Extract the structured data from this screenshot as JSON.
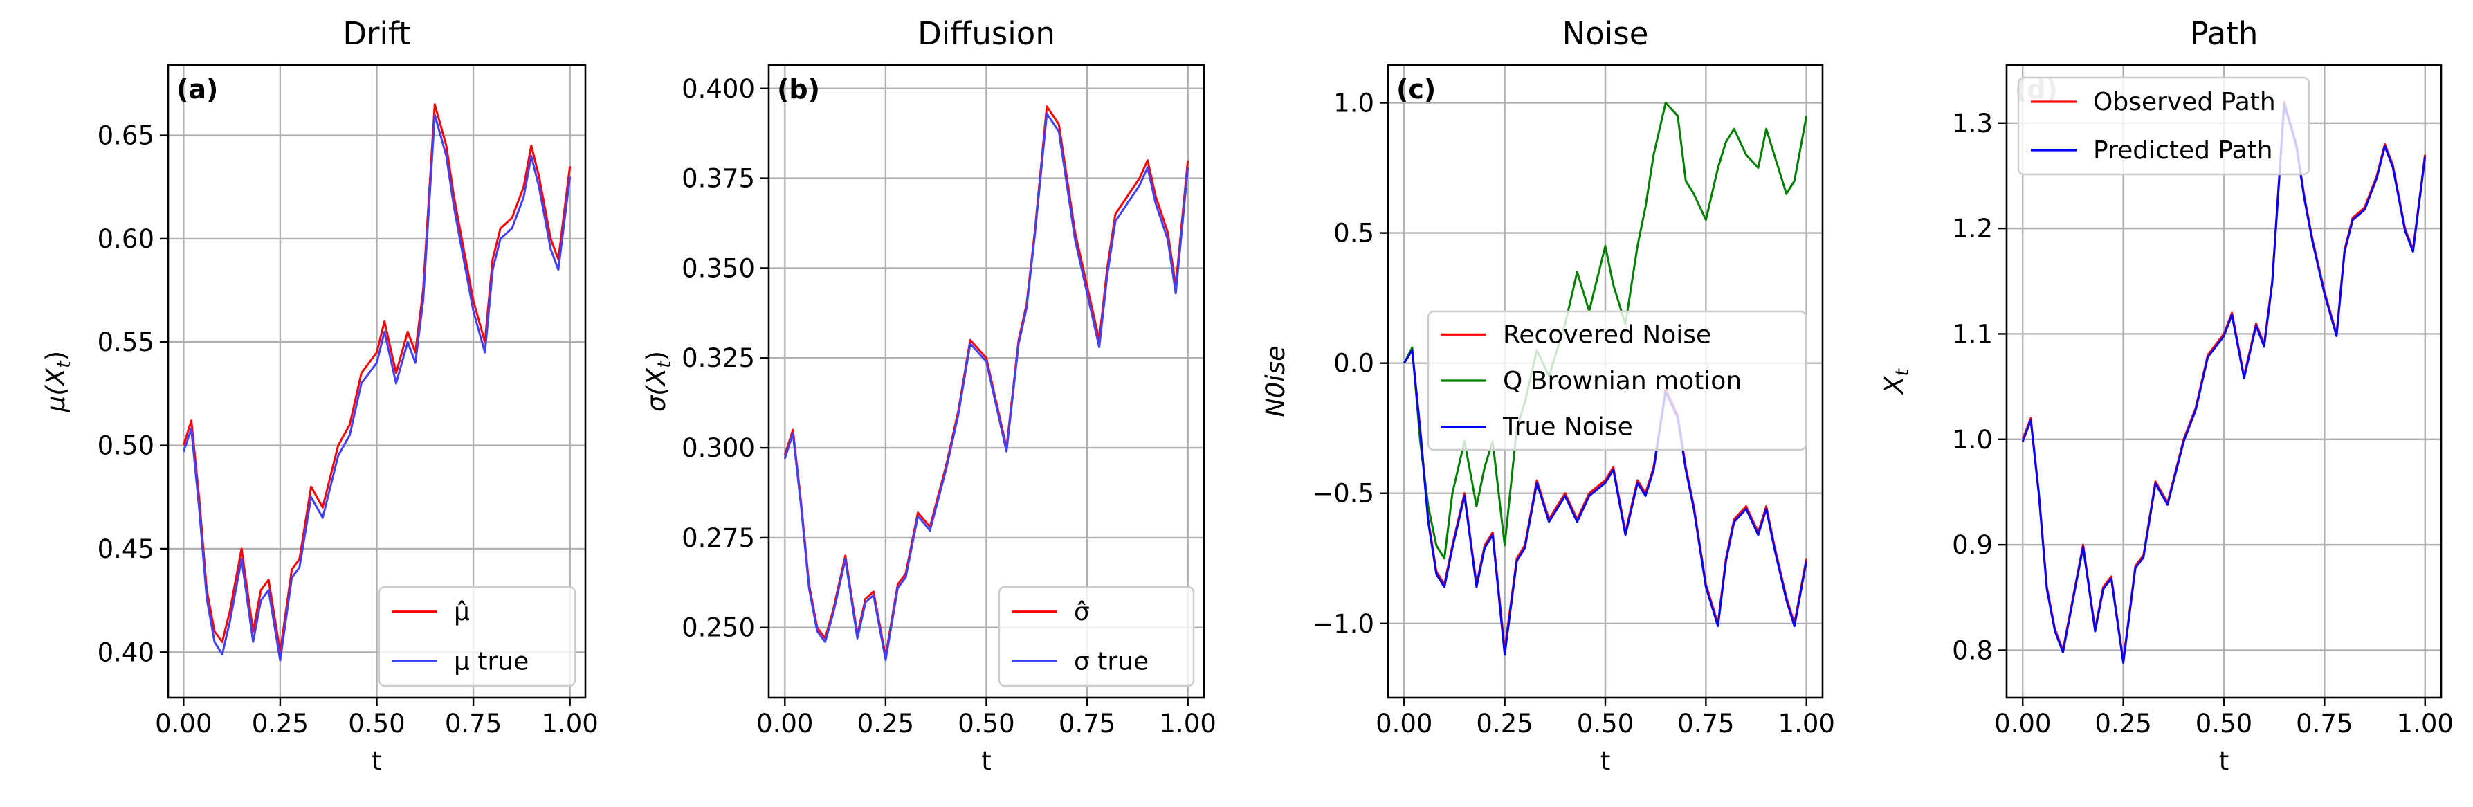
{
  "chart_data": [
    {
      "type": "line",
      "title": "Drift",
      "panel_label": "(a)",
      "xlabel": "t",
      "ylabel": "μ(X_t)",
      "ylabel_display": {
        "main": "μ(X",
        "sub": "t",
        "end": ")"
      },
      "xlim": [
        -0.04,
        1.04
      ],
      "ylim": [
        0.378,
        0.684
      ],
      "xticks": [
        0.0,
        0.25,
        0.5,
        0.75,
        1.0
      ],
      "xtick_labels": [
        "0.00",
        "0.25",
        "0.50",
        "0.75",
        "1.00"
      ],
      "yticks": [
        0.4,
        0.45,
        0.5,
        0.55,
        0.6,
        0.65
      ],
      "ytick_labels": [
        "0.40",
        "0.45",
        "0.50",
        "0.55",
        "0.60",
        "0.65"
      ],
      "grid": true,
      "legend_position": "bottom-right",
      "series": [
        {
          "name": "μ̂",
          "color": "#ff0000",
          "x": [
            0.0,
            0.02,
            0.04,
            0.06,
            0.08,
            0.1,
            0.12,
            0.15,
            0.18,
            0.2,
            0.22,
            0.25,
            0.28,
            0.3,
            0.33,
            0.36,
            0.4,
            0.43,
            0.46,
            0.5,
            0.52,
            0.55,
            0.58,
            0.6,
            0.62,
            0.65,
            0.68,
            0.7,
            0.72,
            0.75,
            0.78,
            0.8,
            0.82,
            0.85,
            0.88,
            0.9,
            0.92,
            0.95,
            0.97,
            1.0
          ],
          "values": [
            0.5,
            0.512,
            0.475,
            0.43,
            0.41,
            0.405,
            0.42,
            0.45,
            0.41,
            0.43,
            0.435,
            0.4,
            0.44,
            0.445,
            0.48,
            0.47,
            0.5,
            0.51,
            0.535,
            0.545,
            0.56,
            0.535,
            0.555,
            0.545,
            0.575,
            0.665,
            0.645,
            0.62,
            0.6,
            0.57,
            0.55,
            0.59,
            0.605,
            0.61,
            0.625,
            0.645,
            0.63,
            0.6,
            0.59,
            0.635
          ]
        },
        {
          "name": "μ true",
          "color": "#4040ff",
          "x": [
            0.0,
            0.02,
            0.04,
            0.06,
            0.08,
            0.1,
            0.12,
            0.15,
            0.18,
            0.2,
            0.22,
            0.25,
            0.28,
            0.3,
            0.33,
            0.36,
            0.4,
            0.43,
            0.46,
            0.5,
            0.52,
            0.55,
            0.58,
            0.6,
            0.62,
            0.65,
            0.68,
            0.7,
            0.72,
            0.75,
            0.78,
            0.8,
            0.82,
            0.85,
            0.88,
            0.9,
            0.92,
            0.95,
            0.97,
            1.0
          ],
          "values": [
            0.497,
            0.508,
            0.47,
            0.426,
            0.405,
            0.399,
            0.415,
            0.445,
            0.405,
            0.425,
            0.43,
            0.396,
            0.436,
            0.441,
            0.475,
            0.465,
            0.495,
            0.505,
            0.53,
            0.54,
            0.555,
            0.53,
            0.55,
            0.54,
            0.57,
            0.66,
            0.64,
            0.615,
            0.595,
            0.565,
            0.545,
            0.585,
            0.6,
            0.605,
            0.62,
            0.64,
            0.625,
            0.595,
            0.585,
            0.63
          ]
        }
      ]
    },
    {
      "type": "line",
      "title": "Diffusion",
      "panel_label": "(b)",
      "xlabel": "t",
      "ylabel": "σ(X_t)",
      "ylabel_display": {
        "main": "σ(X",
        "sub": "t",
        "end": ")"
      },
      "xlim": [
        -0.04,
        1.04
      ],
      "ylim": [
        0.2305,
        0.4065
      ],
      "xticks": [
        0.0,
        0.25,
        0.5,
        0.75,
        1.0
      ],
      "xtick_labels": [
        "0.00",
        "0.25",
        "0.50",
        "0.75",
        "1.00"
      ],
      "yticks": [
        0.25,
        0.275,
        0.3,
        0.325,
        0.35,
        0.375,
        0.4
      ],
      "ytick_labels": [
        "0.250",
        "0.275",
        "0.300",
        "0.325",
        "0.350",
        "0.375",
        "0.400"
      ],
      "grid": true,
      "legend_position": "bottom-right",
      "series": [
        {
          "name": "σ̂",
          "color": "#ff0000",
          "x": [
            0.0,
            0.02,
            0.04,
            0.06,
            0.08,
            0.1,
            0.12,
            0.15,
            0.18,
            0.2,
            0.22,
            0.25,
            0.28,
            0.3,
            0.33,
            0.36,
            0.4,
            0.43,
            0.46,
            0.5,
            0.52,
            0.55,
            0.58,
            0.6,
            0.62,
            0.65,
            0.68,
            0.7,
            0.72,
            0.75,
            0.78,
            0.8,
            0.82,
            0.85,
            0.88,
            0.9,
            0.92,
            0.95,
            0.97,
            1.0
          ],
          "values": [
            0.298,
            0.305,
            0.285,
            0.262,
            0.25,
            0.247,
            0.255,
            0.27,
            0.248,
            0.258,
            0.26,
            0.242,
            0.262,
            0.265,
            0.282,
            0.278,
            0.295,
            0.31,
            0.33,
            0.325,
            0.315,
            0.3,
            0.33,
            0.34,
            0.36,
            0.395,
            0.39,
            0.375,
            0.36,
            0.345,
            0.33,
            0.35,
            0.365,
            0.37,
            0.375,
            0.38,
            0.37,
            0.36,
            0.345,
            0.38
          ]
        },
        {
          "name": "σ true",
          "color": "#4040ff",
          "x": [
            0.0,
            0.02,
            0.04,
            0.06,
            0.08,
            0.1,
            0.12,
            0.15,
            0.18,
            0.2,
            0.22,
            0.25,
            0.28,
            0.3,
            0.33,
            0.36,
            0.4,
            0.43,
            0.46,
            0.5,
            0.52,
            0.55,
            0.58,
            0.6,
            0.62,
            0.65,
            0.68,
            0.7,
            0.72,
            0.75,
            0.78,
            0.8,
            0.82,
            0.85,
            0.88,
            0.9,
            0.92,
            0.95,
            0.97,
            1.0
          ],
          "values": [
            0.297,
            0.304,
            0.284,
            0.261,
            0.249,
            0.246,
            0.254,
            0.269,
            0.247,
            0.257,
            0.259,
            0.241,
            0.261,
            0.264,
            0.281,
            0.277,
            0.294,
            0.309,
            0.329,
            0.324,
            0.314,
            0.299,
            0.329,
            0.339,
            0.359,
            0.393,
            0.388,
            0.373,
            0.358,
            0.343,
            0.328,
            0.348,
            0.363,
            0.368,
            0.373,
            0.378,
            0.368,
            0.358,
            0.343,
            0.378
          ]
        }
      ]
    },
    {
      "type": "line",
      "title": "Noise",
      "panel_label": "(c)",
      "xlabel": "t",
      "ylabel": "N0ise",
      "ylabel_display": {
        "main": "N0ise",
        "sub": "",
        "end": ""
      },
      "xlim": [
        -0.04,
        1.04
      ],
      "ylim": [
        -1.285,
        1.145
      ],
      "xticks": [
        0.0,
        0.25,
        0.5,
        0.75,
        1.0
      ],
      "xtick_labels": [
        "0.00",
        "0.25",
        "0.50",
        "0.75",
        "1.00"
      ],
      "yticks": [
        -1.0,
        -0.5,
        0.0,
        0.5,
        1.0
      ],
      "ytick_labels": [
        "−1.0",
        "−0.5",
        "0.0",
        "0.5",
        "1.0"
      ],
      "grid": true,
      "legend_position": "center-left",
      "series": [
        {
          "name": "Recovered Noise",
          "color": "#ff0000",
          "x": [
            0.0,
            0.02,
            0.04,
            0.06,
            0.08,
            0.1,
            0.12,
            0.15,
            0.18,
            0.2,
            0.22,
            0.25,
            0.28,
            0.3,
            0.33,
            0.36,
            0.4,
            0.43,
            0.46,
            0.5,
            0.52,
            0.55,
            0.58,
            0.6,
            0.62,
            0.65,
            0.68,
            0.7,
            0.72,
            0.75,
            0.78,
            0.8,
            0.82,
            0.85,
            0.88,
            0.9,
            0.92,
            0.95,
            0.97,
            1.0
          ],
          "values": [
            0.0,
            0.05,
            -0.25,
            -0.6,
            -0.8,
            -0.85,
            -0.7,
            -0.5,
            -0.85,
            -0.7,
            -0.65,
            -1.1,
            -0.75,
            -0.7,
            -0.45,
            -0.6,
            -0.5,
            -0.6,
            -0.5,
            -0.45,
            -0.4,
            -0.65,
            -0.45,
            -0.5,
            -0.4,
            -0.1,
            -0.2,
            -0.4,
            -0.55,
            -0.85,
            -1.0,
            -0.75,
            -0.6,
            -0.55,
            -0.65,
            -0.55,
            -0.7,
            -0.9,
            -1.0,
            -0.75
          ]
        },
        {
          "name": "Q Brownian motion",
          "color": "#008000",
          "x": [
            0.0,
            0.02,
            0.04,
            0.06,
            0.08,
            0.1,
            0.12,
            0.15,
            0.18,
            0.2,
            0.22,
            0.25,
            0.28,
            0.3,
            0.33,
            0.36,
            0.4,
            0.43,
            0.46,
            0.5,
            0.52,
            0.55,
            0.58,
            0.6,
            0.62,
            0.65,
            0.68,
            0.7,
            0.72,
            0.75,
            0.78,
            0.8,
            0.82,
            0.85,
            0.88,
            0.9,
            0.92,
            0.95,
            0.97,
            1.0
          ],
          "values": [
            0.0,
            0.06,
            -0.3,
            -0.55,
            -0.7,
            -0.75,
            -0.5,
            -0.3,
            -0.55,
            -0.4,
            -0.3,
            -0.7,
            -0.25,
            -0.15,
            0.05,
            -0.05,
            0.15,
            0.35,
            0.2,
            0.45,
            0.3,
            0.15,
            0.45,
            0.6,
            0.8,
            1.0,
            0.95,
            0.7,
            0.65,
            0.55,
            0.75,
            0.85,
            0.9,
            0.8,
            0.75,
            0.9,
            0.8,
            0.65,
            0.7,
            0.95
          ]
        },
        {
          "name": "True Noise",
          "color": "#0000ff",
          "x": [
            0.0,
            0.02,
            0.04,
            0.06,
            0.08,
            0.1,
            0.12,
            0.15,
            0.18,
            0.2,
            0.22,
            0.25,
            0.28,
            0.3,
            0.33,
            0.36,
            0.4,
            0.43,
            0.46,
            0.5,
            0.52,
            0.55,
            0.58,
            0.6,
            0.62,
            0.65,
            0.68,
            0.7,
            0.72,
            0.75,
            0.78,
            0.8,
            0.82,
            0.85,
            0.88,
            0.9,
            0.92,
            0.95,
            0.97,
            1.0
          ],
          "values": [
            0.0,
            0.05,
            -0.26,
            -0.61,
            -0.81,
            -0.86,
            -0.71,
            -0.51,
            -0.86,
            -0.71,
            -0.66,
            -1.12,
            -0.76,
            -0.71,
            -0.46,
            -0.61,
            -0.51,
            -0.61,
            -0.51,
            -0.46,
            -0.41,
            -0.66,
            -0.46,
            -0.51,
            -0.41,
            -0.11,
            -0.21,
            -0.41,
            -0.56,
            -0.86,
            -1.01,
            -0.76,
            -0.61,
            -0.56,
            -0.66,
            -0.56,
            -0.71,
            -0.91,
            -1.01,
            -0.76
          ]
        }
      ]
    },
    {
      "type": "line",
      "title": "Path",
      "panel_label": "(d)",
      "xlabel": "t",
      "ylabel": "X_t",
      "ylabel_display": {
        "main": "X",
        "sub": "t",
        "end": ""
      },
      "xlim": [
        -0.04,
        1.04
      ],
      "ylim": [
        0.755,
        1.355
      ],
      "xticks": [
        0.0,
        0.25,
        0.5,
        0.75,
        1.0
      ],
      "xtick_labels": [
        "0.00",
        "0.25",
        "0.50",
        "0.75",
        "1.00"
      ],
      "yticks": [
        0.8,
        0.9,
        1.0,
        1.1,
        1.2,
        1.3
      ],
      "ytick_labels": [
        "0.8",
        "0.9",
        "1.0",
        "1.1",
        "1.2",
        "1.3"
      ],
      "grid": true,
      "legend_position": "top-left",
      "series": [
        {
          "name": "Observed Path",
          "color": "#ff0000",
          "x": [
            0.0,
            0.02,
            0.04,
            0.06,
            0.08,
            0.1,
            0.12,
            0.15,
            0.18,
            0.2,
            0.22,
            0.25,
            0.28,
            0.3,
            0.33,
            0.36,
            0.4,
            0.43,
            0.46,
            0.5,
            0.52,
            0.55,
            0.58,
            0.6,
            0.62,
            0.65,
            0.68,
            0.7,
            0.72,
            0.75,
            0.78,
            0.8,
            0.82,
            0.85,
            0.88,
            0.9,
            0.92,
            0.95,
            0.97,
            1.0
          ],
          "values": [
            1.0,
            1.02,
            0.95,
            0.86,
            0.82,
            0.8,
            0.84,
            0.9,
            0.82,
            0.86,
            0.87,
            0.79,
            0.88,
            0.89,
            0.96,
            0.94,
            1.0,
            1.03,
            1.08,
            1.1,
            1.12,
            1.06,
            1.11,
            1.09,
            1.15,
            1.32,
            1.28,
            1.23,
            1.19,
            1.14,
            1.1,
            1.18,
            1.21,
            1.22,
            1.25,
            1.28,
            1.26,
            1.2,
            1.18,
            1.27
          ]
        },
        {
          "name": "Predicted Path",
          "color": "#0000ff",
          "x": [
            0.0,
            0.02,
            0.04,
            0.06,
            0.08,
            0.1,
            0.12,
            0.15,
            0.18,
            0.2,
            0.22,
            0.25,
            0.28,
            0.3,
            0.33,
            0.36,
            0.4,
            0.43,
            0.46,
            0.5,
            0.52,
            0.55,
            0.58,
            0.6,
            0.62,
            0.65,
            0.68,
            0.7,
            0.72,
            0.75,
            0.78,
            0.8,
            0.82,
            0.85,
            0.88,
            0.9,
            0.92,
            0.95,
            0.97,
            1.0
          ],
          "values": [
            0.998,
            1.018,
            0.948,
            0.858,
            0.818,
            0.798,
            0.838,
            0.898,
            0.818,
            0.858,
            0.868,
            0.788,
            0.878,
            0.888,
            0.958,
            0.938,
            0.998,
            1.028,
            1.078,
            1.098,
            1.118,
            1.058,
            1.108,
            1.088,
            1.148,
            1.318,
            1.278,
            1.228,
            1.188,
            1.138,
            1.098,
            1.178,
            1.208,
            1.218,
            1.248,
            1.278,
            1.258,
            1.198,
            1.178,
            1.268
          ]
        }
      ]
    }
  ]
}
